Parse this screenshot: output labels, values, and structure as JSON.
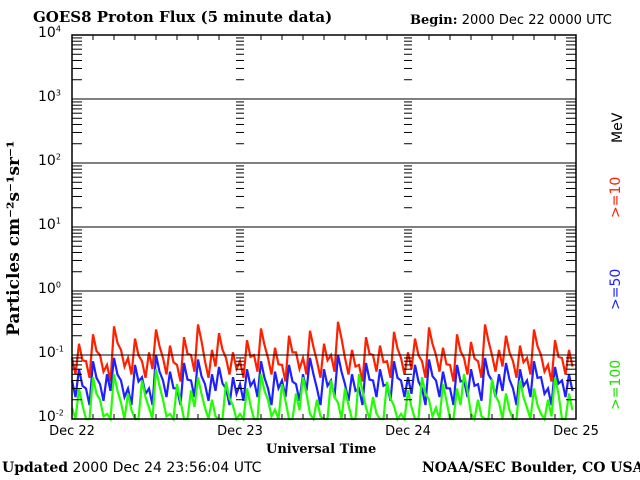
{
  "chart_data": {
    "type": "line",
    "title": "GOES8 Proton Flux (5 minute data)",
    "begin_label": "Begin:",
    "begin_value": "2000 Dec 22 0000 UTC",
    "xlabel": "Universal Time",
    "ylabel": "Particles cm⁻²s⁻¹sr⁻¹",
    "yscale": "log",
    "ylim": [
      0.01,
      10000
    ],
    "y_ticks": [
      {
        "base": "10",
        "exp": "-2"
      },
      {
        "base": "10",
        "exp": "-1"
      },
      {
        "base": "10",
        "exp": "0"
      },
      {
        "base": "10",
        "exp": "1"
      },
      {
        "base": "10",
        "exp": "2"
      },
      {
        "base": "10",
        "exp": "3"
      },
      {
        "base": "10",
        "exp": "4"
      }
    ],
    "x_ticks": [
      "Dec 22",
      "Dec 23",
      "Dec 24",
      "Dec 25"
    ],
    "x_unit": "hours since 2000 Dec 22 0000 UTC, hourly samples",
    "grid": true,
    "legend": [
      {
        "label": ">=10",
        "color": "#ff2000"
      },
      {
        "label": "MeV",
        "color": "#000000"
      },
      {
        "label": ">=50",
        "color": "#2020ff"
      },
      {
        "label": ">=100",
        "color": "#20ff00"
      }
    ],
    "series": [
      {
        "name": ">=10 MeV",
        "color": "#ff2000",
        "values": [
          0.09,
          0.15,
          0.08,
          0.21,
          0.1,
          0.07,
          0.28,
          0.12,
          0.09,
          0.18,
          0.08,
          0.11,
          0.25,
          0.09,
          0.14,
          0.07,
          0.19,
          0.1,
          0.3,
          0.08,
          0.12,
          0.22,
          0.09,
          0.11,
          0.08,
          0.17,
          0.1,
          0.26,
          0.09,
          0.13,
          0.07,
          0.2,
          0.11,
          0.09,
          0.24,
          0.08,
          0.15,
          0.1,
          0.33,
          0.09,
          0.12,
          0.07,
          0.19,
          0.1,
          0.14,
          0.08,
          0.23,
          0.09,
          0.11,
          0.18,
          0.08,
          0.27,
          0.1,
          0.13,
          0.07,
          0.21,
          0.09,
          0.16,
          0.08,
          0.3,
          0.1,
          0.12,
          0.2,
          0.08,
          0.14,
          0.09,
          0.25,
          0.1,
          0.07,
          0.17,
          0.09,
          0.12
        ]
      },
      {
        "name": ">=50 MeV",
        "color": "#2020ff",
        "values": [
          0.04,
          0.06,
          0.03,
          0.08,
          0.035,
          0.05,
          0.09,
          0.04,
          0.03,
          0.07,
          0.045,
          0.03,
          0.1,
          0.04,
          0.055,
          0.03,
          0.075,
          0.04,
          0.085,
          0.035,
          0.05,
          0.065,
          0.03,
          0.045,
          0.035,
          0.06,
          0.04,
          0.08,
          0.03,
          0.055,
          0.04,
          0.07,
          0.035,
          0.05,
          0.09,
          0.03,
          0.06,
          0.04,
          0.1,
          0.035,
          0.05,
          0.03,
          0.075,
          0.04,
          0.06,
          0.035,
          0.08,
          0.04,
          0.045,
          0.07,
          0.03,
          0.085,
          0.04,
          0.055,
          0.03,
          0.07,
          0.04,
          0.06,
          0.035,
          0.09,
          0.04,
          0.05,
          0.075,
          0.03,
          0.06,
          0.04,
          0.08,
          0.045,
          0.03,
          0.065,
          0.04,
          0.05
        ]
      },
      {
        "name": ">=100 MeV",
        "color": "#20ff00",
        "values": [
          0.015,
          0.03,
          0.01,
          0.045,
          0.02,
          0.012,
          0.05,
          0.018,
          0.025,
          0.01,
          0.04,
          0.015,
          0.06,
          0.02,
          0.012,
          0.035,
          0.01,
          0.028,
          0.045,
          0.015,
          0.02,
          0.01,
          0.038,
          0.016,
          0.012,
          0.03,
          0.01,
          0.05,
          0.02,
          0.014,
          0.035,
          0.01,
          0.025,
          0.045,
          0.012,
          0.02,
          0.01,
          0.04,
          0.018,
          0.03,
          0.01,
          0.05,
          0.015,
          0.022,
          0.01,
          0.038,
          0.016,
          0.012,
          0.028,
          0.01,
          0.045,
          0.02,
          0.015,
          0.035,
          0.01,
          0.03,
          0.05,
          0.012,
          0.02,
          0.01,
          0.042,
          0.018,
          0.025,
          0.01,
          0.04,
          0.015,
          0.03,
          0.012,
          0.02,
          0.045,
          0.01,
          0.025
        ]
      }
    ]
  },
  "footer": {
    "updated_label": "Updated",
    "updated_value": "2000 Dec 24 23:56:04 UTC",
    "credit": "NOAA/SEC Boulder, CO USA"
  }
}
